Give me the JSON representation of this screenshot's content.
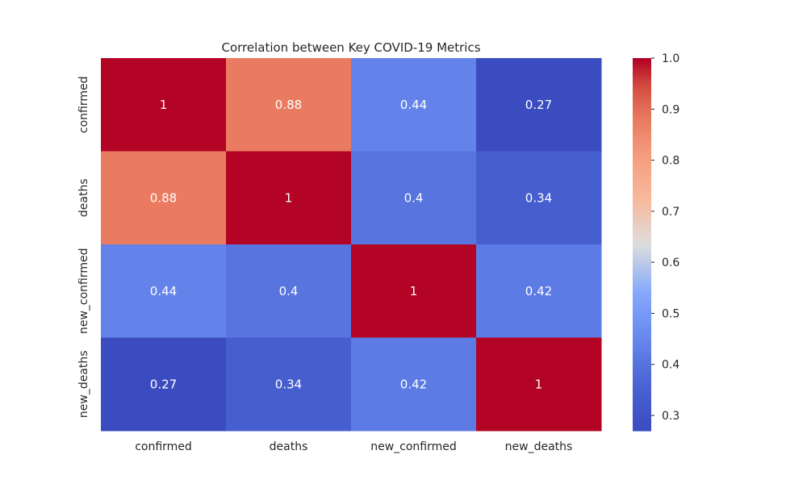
{
  "chart_data": {
    "type": "heatmap",
    "title": "Correlation between Key COVID-19 Metrics",
    "x_categories": [
      "confirmed",
      "deaths",
      "new_confirmed",
      "new_deaths"
    ],
    "y_categories": [
      "confirmed",
      "deaths",
      "new_confirmed",
      "new_deaths"
    ],
    "values": [
      [
        1.0,
        0.88,
        0.44,
        0.27
      ],
      [
        0.88,
        1.0,
        0.4,
        0.34
      ],
      [
        0.44,
        0.4,
        1.0,
        0.42
      ],
      [
        0.27,
        0.34,
        0.42,
        1.0
      ]
    ],
    "annotations": [
      [
        "1",
        "0.88",
        "0.44",
        "0.27"
      ],
      [
        "0.88",
        "1",
        "0.4",
        "0.34"
      ],
      [
        "0.44",
        "0.4",
        "1",
        "0.42"
      ],
      [
        "0.27",
        "0.34",
        "0.42",
        "1"
      ]
    ],
    "colormap": "coolwarm",
    "color_range": [
      0.27,
      1.0
    ],
    "colorbar_ticks": [
      "0.3",
      "0.4",
      "0.5",
      "0.6",
      "0.7",
      "0.8",
      "0.9",
      "1.0"
    ],
    "colors": {
      "low": "#3b4cc0",
      "mid": "#dddddd",
      "high": "#b40426"
    },
    "grid": false,
    "colorbar_placement": "right"
  }
}
